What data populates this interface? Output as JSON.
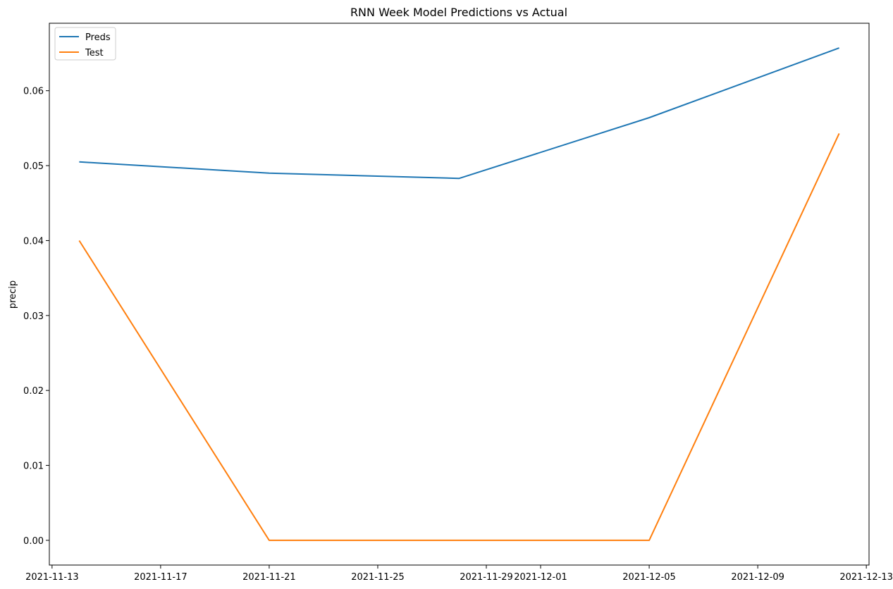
{
  "chart_data": {
    "type": "line",
    "title": "RNN Week Model Predictions vs Actual",
    "xlabel": "",
    "ylabel": "precip",
    "x": [
      "2021-11-14",
      "2021-11-21",
      "2021-11-28",
      "2021-12-05",
      "2021-12-12"
    ],
    "series": [
      {
        "name": "Preds",
        "color": "#1f77b4",
        "values": [
          0.0505,
          0.049,
          0.0483,
          0.0564,
          0.0657
        ]
      },
      {
        "name": "Test",
        "color": "#ff7f0e",
        "values": [
          0.04,
          0.0,
          0.0,
          0.0,
          0.0543
        ]
      }
    ],
    "xlim": [
      "2021-11-13",
      "2021-12-13"
    ],
    "ylim": [
      -0.0033,
      0.069
    ],
    "xticks": [
      "2021-11-13",
      "2021-11-17",
      "2021-11-21",
      "2021-11-25",
      "2021-11-29",
      "2021-12-01",
      "2021-12-05",
      "2021-12-09",
      "2021-12-13"
    ],
    "yticks": [
      0.0,
      0.01,
      0.02,
      0.03,
      0.04,
      0.05,
      0.06
    ],
    "ytick_labels": [
      "0.00",
      "0.01",
      "0.02",
      "0.03",
      "0.04",
      "0.05",
      "0.06"
    ],
    "grid": false,
    "legend_position": "upper-left"
  }
}
